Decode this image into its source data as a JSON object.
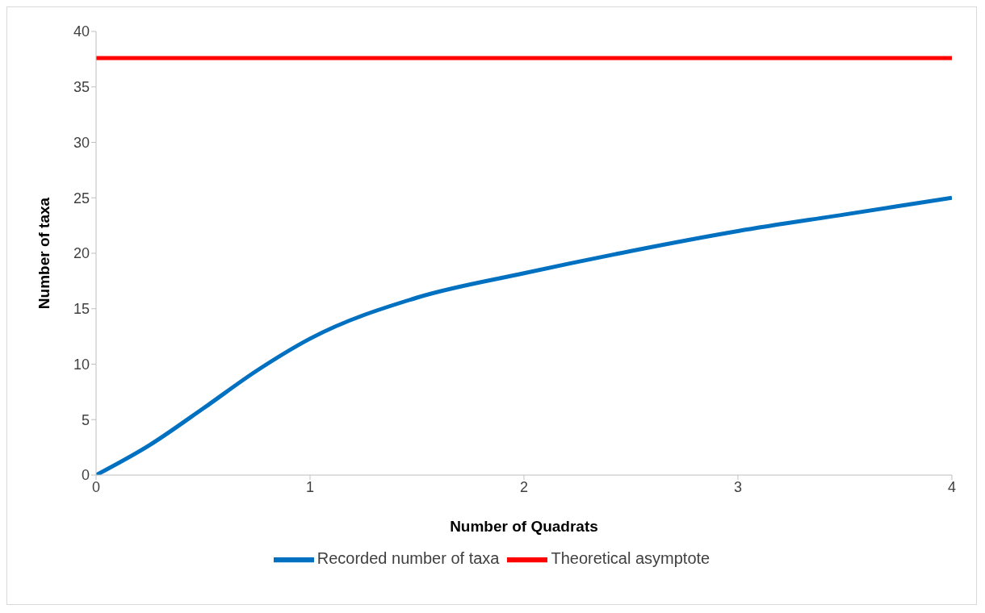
{
  "chart_data": {
    "type": "line",
    "xlabel": "Number of Quadrats",
    "ylabel": "Number of taxa",
    "xlim": [
      0,
      4
    ],
    "xticks": [
      0,
      1,
      2,
      3,
      4
    ],
    "ylim": [
      0,
      40
    ],
    "yticks": [
      0,
      5,
      10,
      15,
      20,
      25,
      30,
      35,
      40
    ],
    "grid": false,
    "legend": "bottom",
    "marker": "none",
    "line_style": "solid",
    "series": [
      {
        "name": "Recorded number of taxa",
        "color": "#0070c0",
        "x": [
          0,
          0.25,
          0.5,
          0.75,
          1,
          1.5,
          2,
          2.5,
          3,
          3.5,
          4
        ],
        "values": [
          0,
          2.7,
          6,
          9.4,
          12.3,
          16,
          18.2,
          20.2,
          22,
          23.5,
          25
        ]
      },
      {
        "name": "Theoretical asymptote",
        "color": "#ff0000",
        "x": [
          0,
          4
        ],
        "values": [
          37.6,
          37.6
        ]
      }
    ]
  }
}
